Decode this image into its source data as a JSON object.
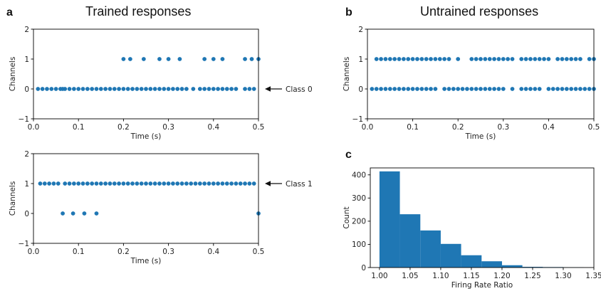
{
  "figure": {
    "panel_letters": [
      "a",
      "b",
      "c"
    ],
    "titles": {
      "a": "Trained responses",
      "b": "Untrained responses"
    },
    "colors": {
      "marker": "#1f77b4",
      "bar": "#1f77b4",
      "axis": "#000000",
      "arrow": "#111111"
    }
  },
  "chart_data": [
    {
      "id": "a_top",
      "type": "scatter",
      "panel": "a",
      "xlabel": "Time (s)",
      "ylabel": "Channels",
      "xlim": [
        0,
        0.5
      ],
      "ylim": [
        -1,
        2
      ],
      "xticks": [
        0.0,
        0.1,
        0.2,
        0.3,
        0.4,
        0.5
      ],
      "xtick_labels": [
        "0.0",
        "0.1",
        "0.2",
        "0.3",
        "0.4",
        "0.5"
      ],
      "yticks": [
        -1,
        0,
        1,
        2
      ],
      "ytick_labels": [
        "−1",
        "0",
        "1",
        "2"
      ],
      "annotation": {
        "text": "Class 0",
        "y": 0
      },
      "series": [
        {
          "y": 0,
          "x": [
            0.01,
            0.02,
            0.03,
            0.04,
            0.05,
            0.06,
            0.065,
            0.07,
            0.08,
            0.09,
            0.1,
            0.11,
            0.12,
            0.13,
            0.14,
            0.15,
            0.16,
            0.17,
            0.18,
            0.19,
            0.2,
            0.21,
            0.22,
            0.23,
            0.24,
            0.25,
            0.26,
            0.27,
            0.28,
            0.29,
            0.3,
            0.31,
            0.32,
            0.33,
            0.34,
            0.355,
            0.37,
            0.38,
            0.39,
            0.4,
            0.41,
            0.42,
            0.43,
            0.44,
            0.45,
            0.47,
            0.48,
            0.49
          ]
        },
        {
          "y": 1,
          "x": [
            0.2,
            0.215,
            0.245,
            0.28,
            0.3,
            0.325,
            0.38,
            0.4,
            0.42,
            0.47,
            0.485,
            0.5
          ]
        }
      ]
    },
    {
      "id": "a_bottom",
      "type": "scatter",
      "panel": "a",
      "xlabel": "Time (s)",
      "ylabel": "Channels",
      "xlim": [
        0,
        0.5
      ],
      "ylim": [
        -1,
        2
      ],
      "xticks": [
        0.0,
        0.1,
        0.2,
        0.3,
        0.4,
        0.5
      ],
      "xtick_labels": [
        "0.0",
        "0.1",
        "0.2",
        "0.3",
        "0.4",
        "0.5"
      ],
      "yticks": [
        -1,
        0,
        1,
        2
      ],
      "ytick_labels": [
        "−1",
        "0",
        "1",
        "2"
      ],
      "annotation": {
        "text": "Class 1",
        "y": 1
      },
      "series": [
        {
          "y": 1,
          "x": [
            0.015,
            0.025,
            0.035,
            0.045,
            0.055,
            0.07,
            0.08,
            0.09,
            0.1,
            0.11,
            0.12,
            0.13,
            0.14,
            0.15,
            0.16,
            0.17,
            0.18,
            0.19,
            0.2,
            0.21,
            0.22,
            0.23,
            0.24,
            0.25,
            0.26,
            0.27,
            0.28,
            0.29,
            0.3,
            0.31,
            0.32,
            0.33,
            0.34,
            0.35,
            0.36,
            0.37,
            0.38,
            0.39,
            0.4,
            0.41,
            0.42,
            0.43,
            0.44,
            0.45,
            0.46,
            0.47,
            0.48,
            0.49
          ]
        },
        {
          "y": 0,
          "x": [
            0.065,
            0.088,
            0.113,
            0.14,
            0.5
          ]
        }
      ]
    },
    {
      "id": "b",
      "type": "scatter",
      "panel": "b",
      "xlabel": "Time (s)",
      "ylabel": "Channels",
      "xlim": [
        0,
        0.5
      ],
      "ylim": [
        -1,
        2
      ],
      "xticks": [
        0.0,
        0.1,
        0.2,
        0.3,
        0.4,
        0.5
      ],
      "xtick_labels": [
        "0.0",
        "0.1",
        "0.2",
        "0.3",
        "0.4",
        "0.5"
      ],
      "yticks": [
        -1,
        0,
        1,
        2
      ],
      "ytick_labels": [
        "−1",
        "0",
        "1",
        "2"
      ],
      "series": [
        {
          "y": 1,
          "x": [
            0.02,
            0.03,
            0.04,
            0.05,
            0.06,
            0.07,
            0.08,
            0.09,
            0.1,
            0.11,
            0.12,
            0.13,
            0.14,
            0.15,
            0.16,
            0.17,
            0.18,
            0.2,
            0.23,
            0.24,
            0.25,
            0.26,
            0.27,
            0.28,
            0.29,
            0.3,
            0.31,
            0.32,
            0.34,
            0.35,
            0.36,
            0.37,
            0.38,
            0.39,
            0.4,
            0.42,
            0.43,
            0.44,
            0.45,
            0.46,
            0.47,
            0.49,
            0.5
          ]
        },
        {
          "y": 0,
          "x": [
            0.01,
            0.02,
            0.03,
            0.04,
            0.05,
            0.06,
            0.07,
            0.08,
            0.09,
            0.1,
            0.11,
            0.12,
            0.13,
            0.14,
            0.15,
            0.17,
            0.18,
            0.19,
            0.2,
            0.21,
            0.22,
            0.23,
            0.24,
            0.25,
            0.26,
            0.27,
            0.28,
            0.29,
            0.3,
            0.32,
            0.34,
            0.35,
            0.36,
            0.37,
            0.38,
            0.4,
            0.41,
            0.42,
            0.43,
            0.44,
            0.45,
            0.46,
            0.47,
            0.48,
            0.49,
            0.5
          ]
        }
      ]
    },
    {
      "id": "c",
      "type": "bar",
      "panel": "c",
      "xlabel": "Firing Rate Ratio",
      "ylabel": "Count",
      "xlim": [
        0.985,
        1.35
      ],
      "ylim": [
        0,
        430
      ],
      "xticks": [
        1.0,
        1.05,
        1.1,
        1.15,
        1.2,
        1.25,
        1.3,
        1.35
      ],
      "xtick_labels": [
        "1.00",
        "1.05",
        "1.10",
        "1.15",
        "1.20",
        "1.25",
        "1.30",
        "1.35"
      ],
      "yticks": [
        0,
        100,
        200,
        300,
        400
      ],
      "ytick_labels": [
        "0",
        "100",
        "200",
        "300",
        "400"
      ],
      "bin_edges": [
        1.0,
        1.0333,
        1.0667,
        1.1,
        1.1333,
        1.1667,
        1.2,
        1.2333,
        1.2667,
        1.3,
        1.3333
      ],
      "values": [
        415,
        230,
        160,
        102,
        53,
        27,
        10,
        3,
        2,
        1
      ]
    }
  ]
}
